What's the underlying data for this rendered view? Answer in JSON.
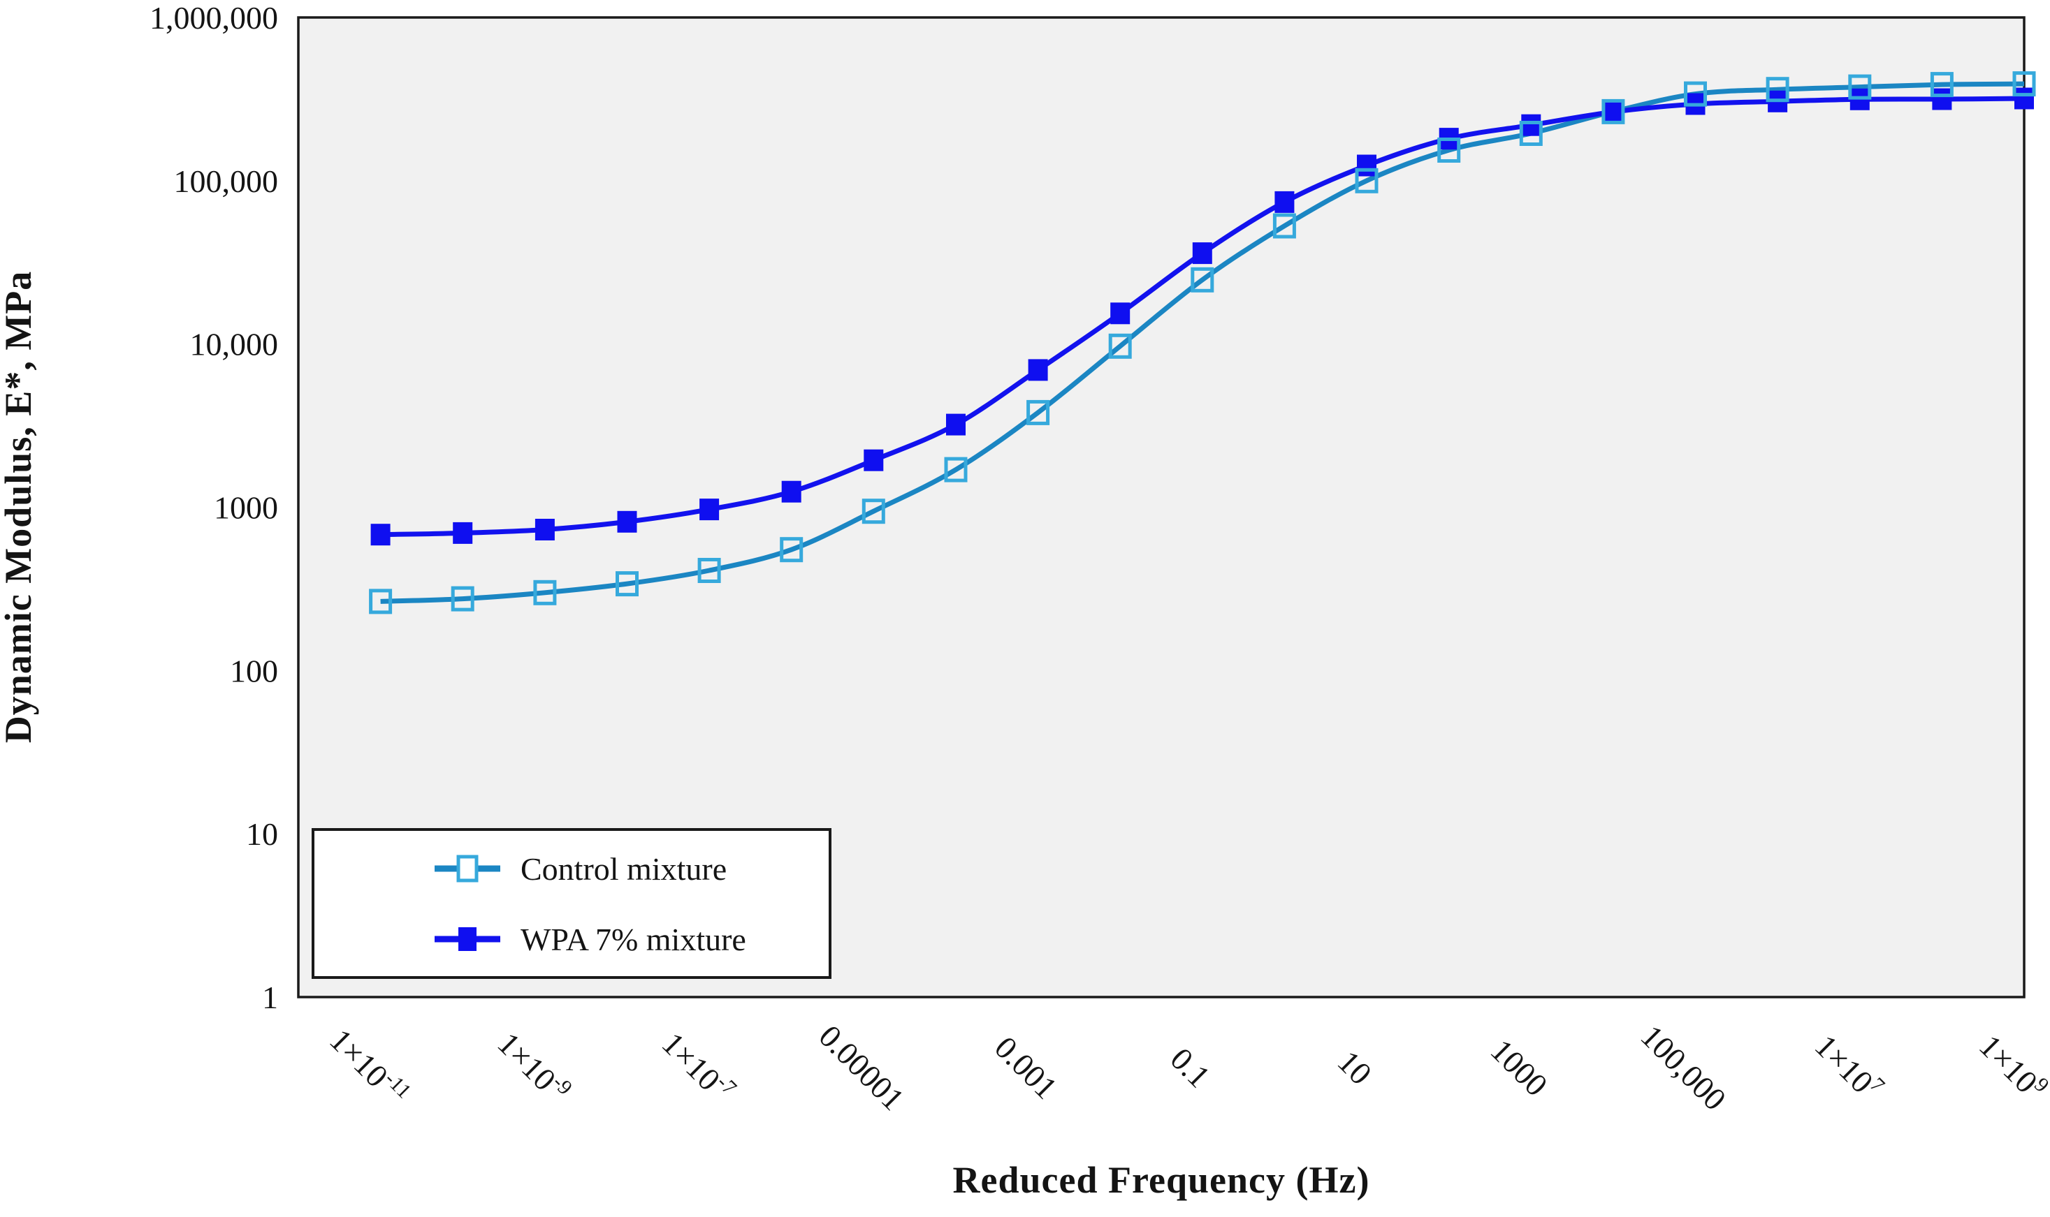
{
  "chart_data": {
    "type": "line",
    "title": "",
    "xlabel": "Reduced Frequency (Hz)",
    "ylabel": "Dynamic Modulus, E*, MPa",
    "x_scale": "log",
    "y_scale": "log",
    "xlim": [
      1e-12,
      1000000000.0
    ],
    "ylim": [
      1,
      1000000
    ],
    "grid": false,
    "plot_background": "#f1f1f1",
    "plot_border_color": "#1a1a1a",
    "legend_position": "bottom-left-inside",
    "x_ticks": [
      {
        "value": 1e-11,
        "label": "1×10^-11"
      },
      {
        "value": 1e-09,
        "label": "1×10^-9"
      },
      {
        "value": 1e-07,
        "label": "1×10^-7"
      },
      {
        "value": 1e-05,
        "label": "0.00001"
      },
      {
        "value": 0.001,
        "label": "0.001"
      },
      {
        "value": 0.1,
        "label": "0.1"
      },
      {
        "value": 10,
        "label": "10"
      },
      {
        "value": 1000,
        "label": "1000"
      },
      {
        "value": 100000.0,
        "label": "100,000"
      },
      {
        "value": 10000000.0,
        "label": "1×10^7"
      },
      {
        "value": 1000000000.0,
        "label": "1×10^9"
      }
    ],
    "y_ticks": [
      {
        "value": 1,
        "label": "1"
      },
      {
        "value": 10,
        "label": "10"
      },
      {
        "value": 100,
        "label": "100"
      },
      {
        "value": 1000,
        "label": "1000"
      },
      {
        "value": 10000,
        "label": "10,000"
      },
      {
        "value": 100000,
        "label": "100,000"
      },
      {
        "value": 1000000,
        "label": "1,000,000"
      }
    ],
    "x": [
      1e-11,
      1e-10,
      1e-09,
      1e-08,
      1e-07,
      1e-06,
      1e-05,
      0.0001,
      0.001,
      0.01,
      0.1,
      1,
      10,
      100,
      1000,
      10000.0,
      100000.0,
      1000000.0,
      10000000.0,
      100000000.0,
      1000000000.0
    ],
    "series": [
      {
        "name": "Control mixture",
        "color": "#1b86c3",
        "marker": "open-square",
        "marker_color": "#36a9dc",
        "values": [
          265,
          275,
          300,
          340,
          410,
          550,
          945,
          1700,
          3800,
          9700,
          24700,
          52900,
          100000,
          154000,
          195000,
          265000,
          340000,
          362000,
          375000,
          388000,
          392000
        ]
      },
      {
        "name": "WPA 7% mixture",
        "color": "#1212ee",
        "marker": "filled-square",
        "marker_color": "#0f0ff0",
        "values": [
          680,
          695,
          730,
          815,
          970,
          1245,
          1940,
          3210,
          6930,
          15400,
          36000,
          74000,
          124000,
          181000,
          219000,
          264000,
          295000,
          306000,
          315000,
          316000,
          319000
        ]
      }
    ]
  }
}
